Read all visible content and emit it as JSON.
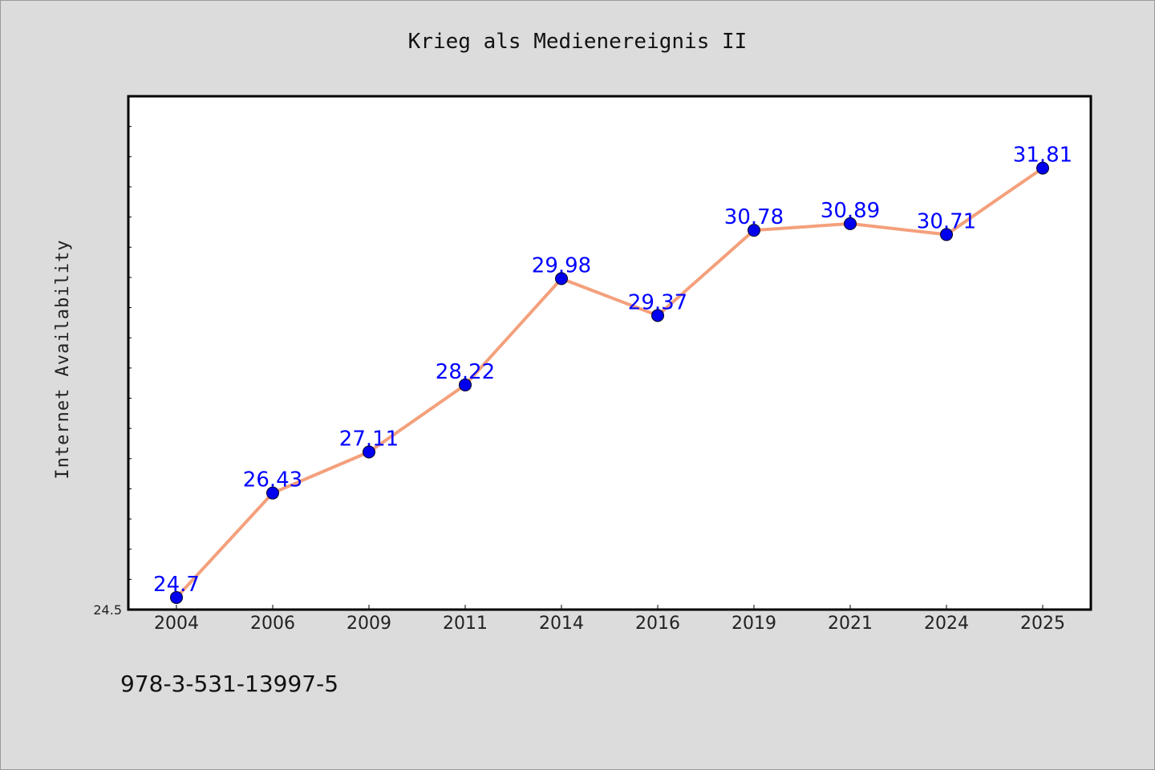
{
  "colors": {
    "background": "#dcdcdc",
    "plot_background": "#ffffff",
    "line": "#f4a07c",
    "marker": "#0000ee",
    "data_label": "#0000ff",
    "axis": "#000000"
  },
  "footer": {
    "isbn": "978-3-531-13997-5"
  },
  "chart_data": {
    "type": "line",
    "title": "Krieg als Medienereignis II",
    "xlabel": "",
    "ylabel": "Internet Availability",
    "categories": [
      "2004",
      "2006",
      "2009",
      "2011",
      "2014",
      "2016",
      "2019",
      "2021",
      "2024",
      "2025"
    ],
    "series": [
      {
        "values": [
          24.7,
          26.43,
          27.11,
          28.22,
          29.98,
          29.37,
          30.78,
          30.89,
          30.71,
          31.81
        ],
        "data_labels": [
          "24.7",
          "26.43",
          "27.11",
          "28.22",
          "29.98",
          "29.37",
          "30.78",
          "30.89",
          "30.71",
          "31.81"
        ]
      }
    ],
    "ylim": [
      24.5,
      33.0
    ],
    "y_tick_labels": [
      "24.5"
    ],
    "grid": false,
    "legend": "none"
  }
}
